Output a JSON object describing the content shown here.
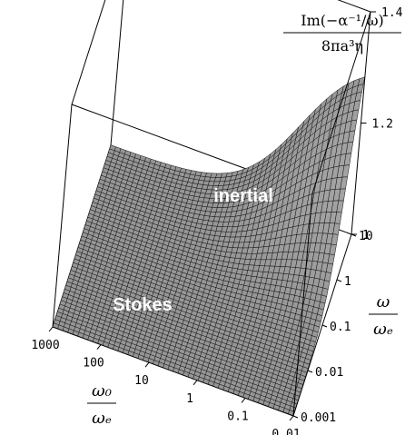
{
  "chart_data": {
    "type": "surface",
    "title": "",
    "zlabel": {
      "numerator": "Im(−α⁻¹/ω)",
      "denominator": "8πa³η"
    },
    "xlabel": {
      "numerator": "ω₀",
      "denominator": "ωₑ"
    },
    "ylabel": {
      "numerator": "ω",
      "denominator": "ωₑ"
    },
    "x_axis": {
      "scale": "log",
      "range": [
        0.01,
        1000
      ],
      "ticks": [
        "1000",
        "100",
        "10",
        "1",
        "0.1",
        "0.01"
      ]
    },
    "y_axis": {
      "scale": "log",
      "range": [
        0.001,
        10
      ],
      "ticks": [
        "0.001",
        "0.01",
        "0.1",
        "1",
        "10"
      ]
    },
    "z_axis": {
      "range": [
        1,
        1.4
      ],
      "ticks": [
        "1",
        "1.2",
        "1.4"
      ]
    },
    "annotations": [
      "inertial",
      "Stokes"
    ],
    "surface_description_points": [
      {
        "omega0_over_omegae": 1000,
        "omega_over_omegae": 0.001,
        "value": 1.0
      },
      {
        "omega0_over_omegae": 0.01,
        "omega_over_omegae": 0.001,
        "value": 1.0
      },
      {
        "omega0_over_omegae": 0.01,
        "omega_over_omegae": 10,
        "value": 1.38
      },
      {
        "omega0_over_omegae": 1000,
        "omega_over_omegae": 10,
        "value": 1.0
      }
    ],
    "grid": false,
    "box": true
  }
}
